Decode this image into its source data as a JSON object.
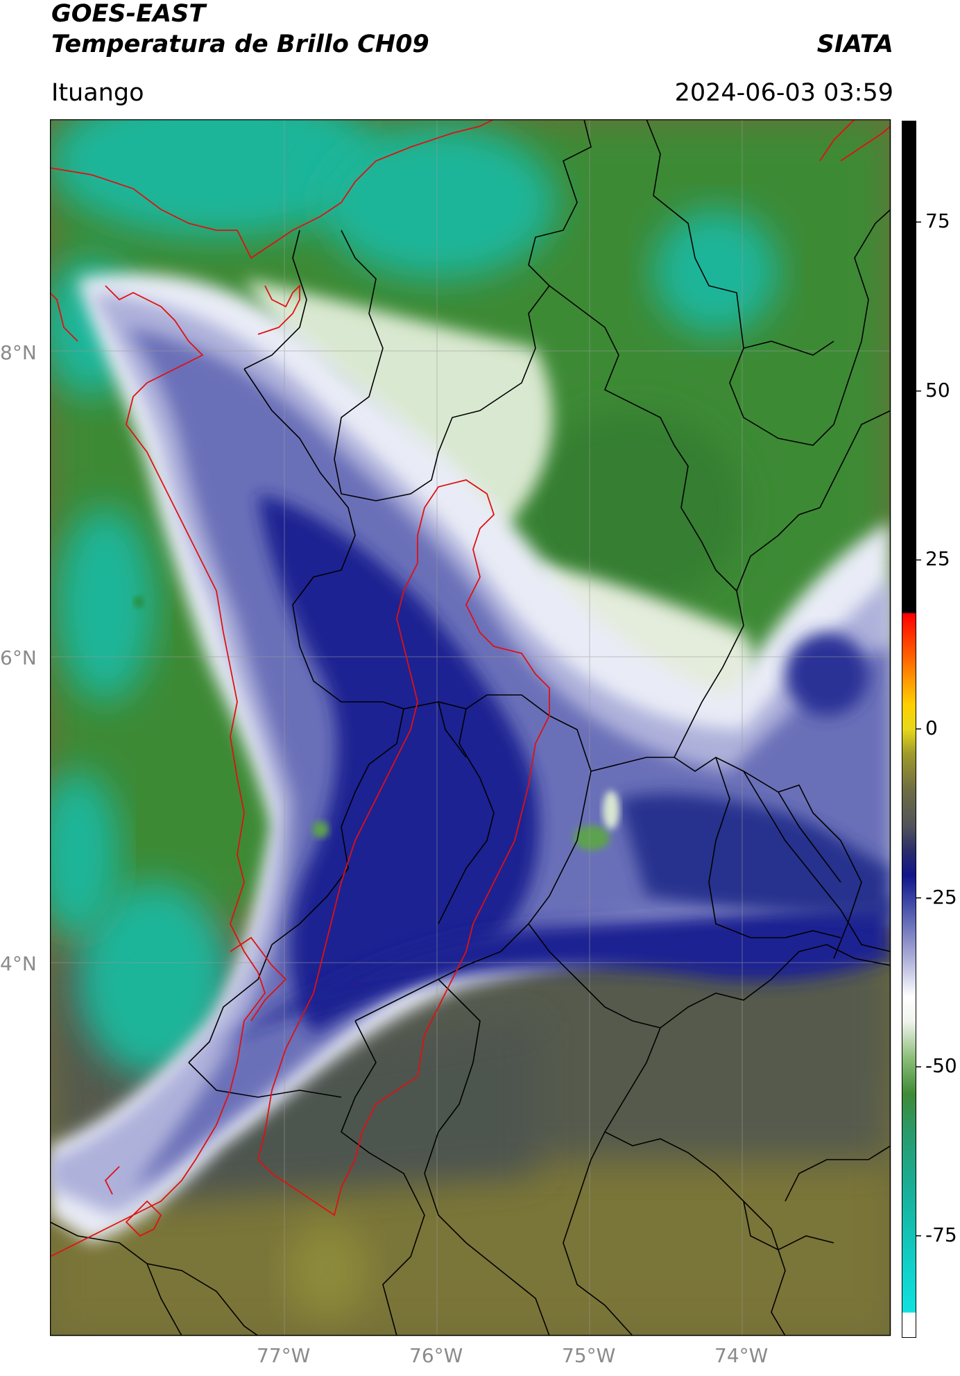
{
  "header": {
    "line1": "GOES-EAST",
    "line2": "Temperatura de Brillo CH09",
    "brand": "SIATA",
    "location": "Ituango",
    "timestamp": "2024-06-03 03:59"
  },
  "map": {
    "lat_labels": [
      "8°N",
      "6°N",
      "4°N"
    ],
    "lon_labels": [
      "77°W",
      "76°W",
      "75°W",
      "74°W"
    ],
    "gridlines": true,
    "border_color": "#000000",
    "highlight_region_color": "#e00000"
  },
  "colorbar": {
    "tick_labels": [
      "75",
      "50",
      "25",
      "0",
      "-25",
      "-50",
      "-75"
    ],
    "tick_values": [
      75,
      50,
      25,
      0,
      -25,
      -50,
      -75
    ],
    "range": [
      -90,
      90
    ],
    "units": ""
  }
}
